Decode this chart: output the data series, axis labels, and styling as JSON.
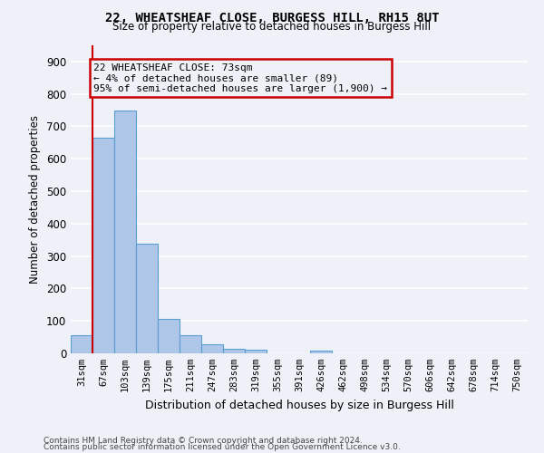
{
  "title1": "22, WHEATSHEAF CLOSE, BURGESS HILL, RH15 8UT",
  "title2": "Size of property relative to detached houses in Burgess Hill",
  "xlabel": "Distribution of detached houses by size in Burgess Hill",
  "ylabel": "Number of detached properties",
  "categories": [
    "31sqm",
    "67sqm",
    "103sqm",
    "139sqm",
    "175sqm",
    "211sqm",
    "247sqm",
    "283sqm",
    "319sqm",
    "355sqm",
    "391sqm",
    "426sqm",
    "462sqm",
    "498sqm",
    "534sqm",
    "570sqm",
    "606sqm",
    "642sqm",
    "678sqm",
    "714sqm",
    "750sqm"
  ],
  "values": [
    57,
    665,
    750,
    338,
    107,
    55,
    27,
    13,
    10,
    0,
    0,
    8,
    0,
    0,
    0,
    0,
    0,
    0,
    0,
    0,
    0
  ],
  "bar_color": "#aec6e8",
  "bar_edge_color": "#5a9fd4",
  "vline_color": "#cc0000",
  "vline_x_index": 1,
  "ylim": [
    0,
    950
  ],
  "yticks": [
    0,
    100,
    200,
    300,
    400,
    500,
    600,
    700,
    800,
    900
  ],
  "annotation_text": "22 WHEATSHEAF CLOSE: 73sqm\n← 4% of detached houses are smaller (89)\n95% of semi-detached houses are larger (1,900) →",
  "annotation_box_color": "#cc0000",
  "footer1": "Contains HM Land Registry data © Crown copyright and database right 2024.",
  "footer2": "Contains public sector information licensed under the Open Government Licence v3.0.",
  "bg_color": "#eef2f8",
  "grid_color": "#ffffff"
}
